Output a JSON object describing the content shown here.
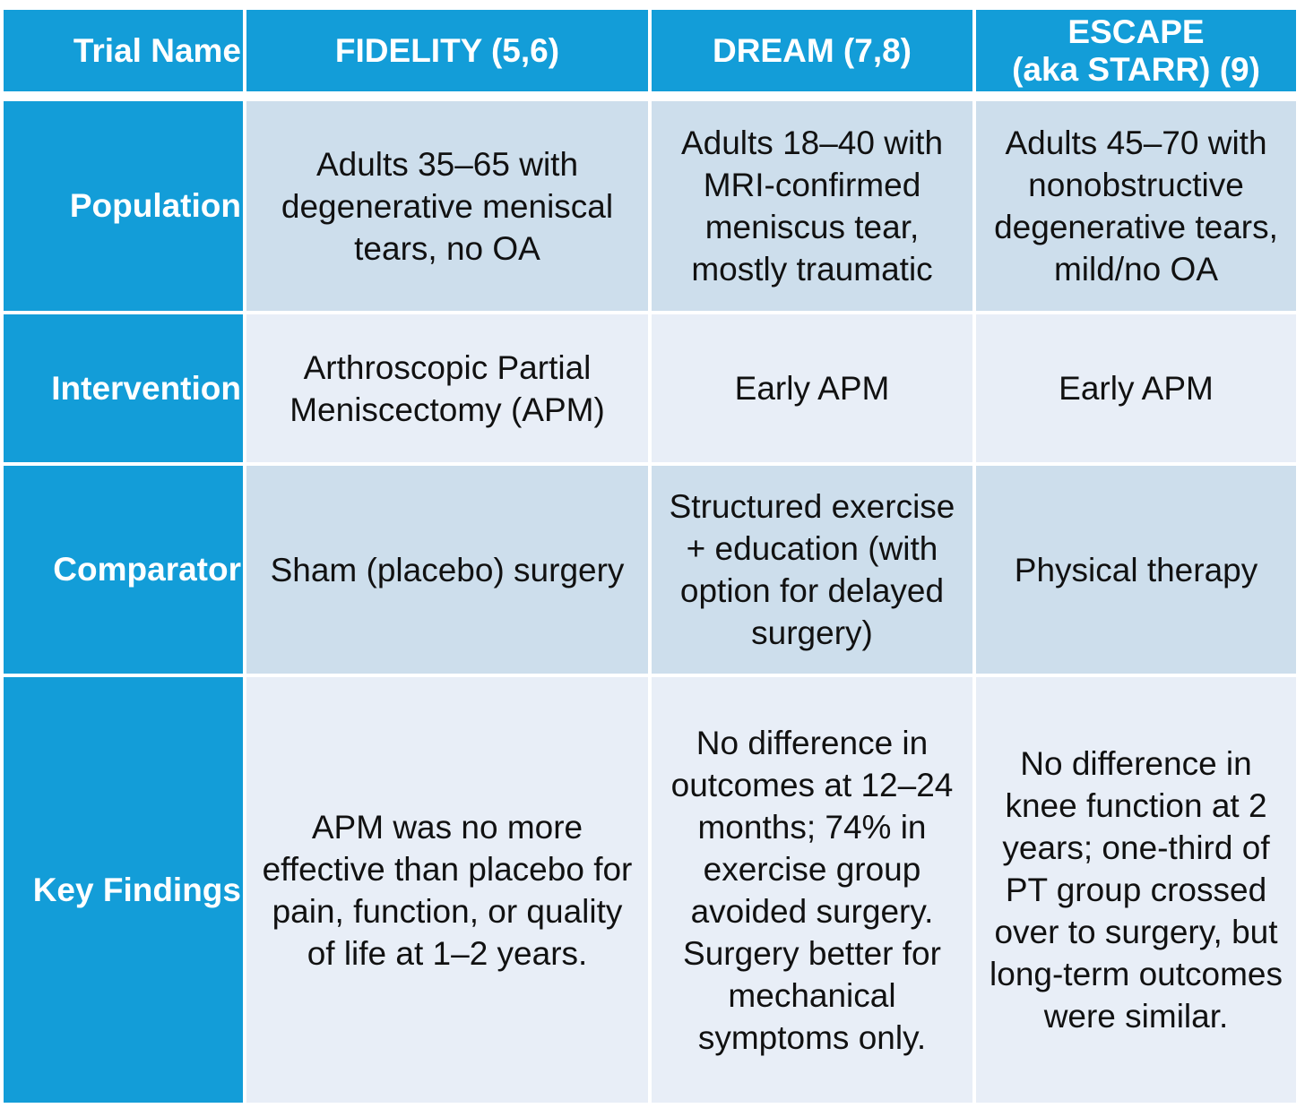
{
  "table": {
    "header": {
      "trial_name": "Trial Name",
      "col1": "FIDELITY (5,6)",
      "col2": "DREAM (7,8)",
      "col3_line1": "ESCAPE",
      "col3_line2": "(aka STARR) (9)"
    },
    "rows": [
      {
        "label": "Population",
        "fidelity": [
          "Adults 35–65 with",
          "degenerative meniscal",
          "tears, no OA"
        ],
        "dream": [
          "Adults 18–40 with",
          "MRI-confirmed",
          "meniscus tear,",
          "mostly traumatic"
        ],
        "escape": [
          "Adults 45–70 with",
          "nonobstructive",
          "degenerative tears,",
          "mild/no OA"
        ]
      },
      {
        "label": "Intervention",
        "fidelity": [
          "Arthroscopic Partial",
          "Meniscectomy (APM)"
        ],
        "dream": [
          "Early APM"
        ],
        "escape": [
          "Early APM"
        ]
      },
      {
        "label": "Comparator",
        "fidelity": [
          "Sham (placebo) surgery"
        ],
        "dream": [
          "Structured exercise",
          "+ education (with",
          "option for delayed",
          "surgery)"
        ],
        "escape": [
          "Physical therapy"
        ]
      },
      {
        "label": "Key Findings",
        "fidelity": [
          "APM was no more",
          "effective than placebo for",
          "pain, function, or quality",
          "of life at 1–2 years."
        ],
        "dream": [
          "No difference in",
          "outcomes at 12–24",
          "months; 74% in",
          "exercise group",
          "avoided surgery.",
          "Surgery better for",
          "mechanical",
          "symptoms only."
        ],
        "escape": [
          "No difference in",
          "knee function at 2",
          "years; one-third of",
          "PT group crossed",
          "over to surgery, but",
          "long-term outcomes",
          "were similar."
        ]
      }
    ]
  },
  "colors": {
    "header_blue": "#139dd8",
    "cell_dark": "#cddeec",
    "cell_light": "#e8eef7",
    "text": "#111111"
  }
}
